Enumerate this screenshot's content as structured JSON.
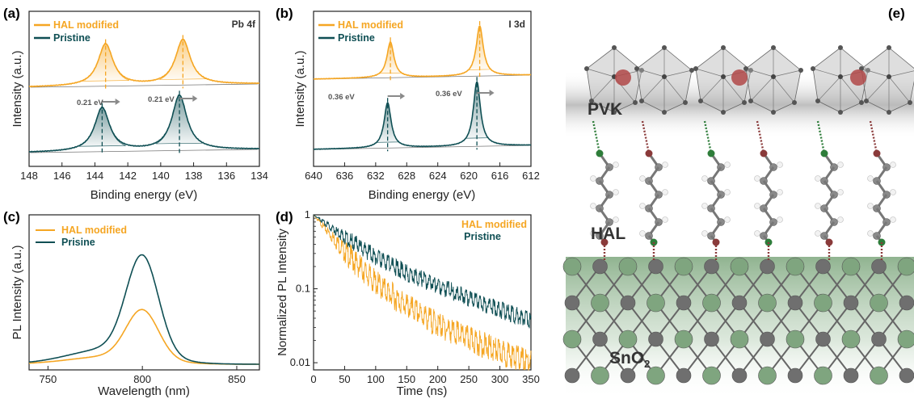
{
  "colors": {
    "hal": "#f5a623",
    "pristine": "#0f4f54",
    "axis": "#222222",
    "guide": "#555555",
    "pvk": "#9a9a9a",
    "sno2": "#6b9a6b",
    "lattice": "#666666",
    "pb": "#b04848"
  },
  "panels": {
    "a": {
      "label": "(a)",
      "corner": "Pb 4f",
      "legend": [
        "HAL modified",
        "Pristine"
      ],
      "annotations": [
        "0.21 eV",
        "0.21 eV"
      ],
      "xlabel": "Binding energy (eV)",
      "ylabel": "Intensity (a.u.)",
      "xticks": [
        "148",
        "146",
        "144",
        "142",
        "140",
        "138",
        "136",
        "134"
      ]
    },
    "b": {
      "label": "(b)",
      "corner": "I 3d",
      "legend": [
        "HAL modified",
        "Pristine"
      ],
      "annotations": [
        "0.36 eV",
        "0.36 eV"
      ],
      "xlabel": "Binding energy (eV)",
      "ylabel": "Intensity (a.u.)",
      "xticks": [
        "640",
        "636",
        "632",
        "628",
        "624",
        "620",
        "616",
        "612"
      ]
    },
    "c": {
      "label": "(c)",
      "legend": [
        "HAL modified",
        "Prisine"
      ],
      "xlabel": "Wavelength (nm)",
      "ylabel": "PL Intensity (a.u.)",
      "xticks": [
        "750",
        "800",
        "850"
      ]
    },
    "d": {
      "label": "(d)",
      "legend": [
        "HAL modified",
        "Pristine"
      ],
      "xlabel": "Time (ns)",
      "ylabel": "Normalized PL Intensity",
      "xticks": [
        "0",
        "50",
        "100",
        "150",
        "200",
        "250",
        "300",
        "350"
      ],
      "yticks": [
        "1",
        "0.1",
        "0.01"
      ]
    },
    "e": {
      "label": "(e)",
      "labels": {
        "pvk": "PVK",
        "hal": "HAL",
        "sno2": "SnO",
        "sno2_sub": "2"
      }
    }
  },
  "chart_data": [
    {
      "panel": "a",
      "type": "line",
      "xlim": [
        148,
        134
      ],
      "x_reversed": true,
      "series": [
        {
          "name": "HAL modified",
          "peaks_eV": [
            143.35,
            138.65
          ],
          "shift_eV": 0.21
        },
        {
          "name": "Pristine",
          "peaks_eV": [
            143.56,
            138.86
          ]
        }
      ]
    },
    {
      "panel": "b",
      "type": "line",
      "xlim": [
        640,
        612
      ],
      "x_reversed": true,
      "series": [
        {
          "name": "HAL modified",
          "peaks_eV": [
            630.1,
            618.6
          ],
          "shift_eV": 0.36
        },
        {
          "name": "Pristine",
          "peaks_eV": [
            630.46,
            618.96
          ]
        }
      ]
    },
    {
      "panel": "c",
      "type": "line",
      "xlim": [
        740,
        862
      ],
      "series": [
        {
          "name": "HAL modified",
          "peak_nm": 800,
          "relative_peak": 0.5
        },
        {
          "name": "Prisine",
          "peak_nm": 800,
          "relative_peak": 1.0
        }
      ]
    },
    {
      "panel": "d",
      "type": "line",
      "xlim": [
        0,
        350
      ],
      "ylim": [
        0.008,
        1
      ],
      "log_y": true,
      "series": [
        {
          "name": "HAL modified",
          "x": [
            0,
            50,
            100,
            150,
            200,
            250,
            300,
            350
          ],
          "y": [
            1,
            0.32,
            0.12,
            0.058,
            0.033,
            0.021,
            0.014,
            0.01
          ]
        },
        {
          "name": "Pristine",
          "x": [
            0,
            50,
            100,
            150,
            200,
            250,
            300,
            350
          ],
          "y": [
            1,
            0.5,
            0.27,
            0.165,
            0.11,
            0.075,
            0.052,
            0.037
          ]
        }
      ]
    }
  ]
}
